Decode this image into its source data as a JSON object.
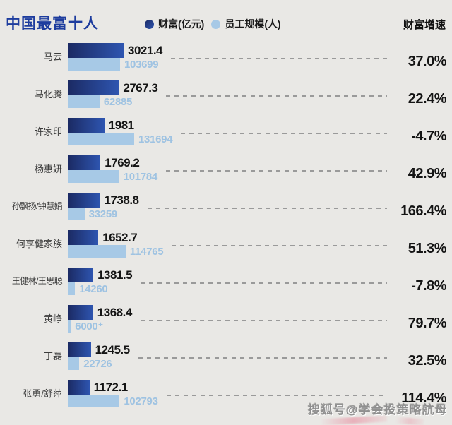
{
  "header": {
    "title": "中国最富十人",
    "legend_wealth": "财富(亿元)",
    "legend_employees": "员工规模(人)",
    "growth_header": "财富增速"
  },
  "watermark": "搜狐号@学会投策略航母",
  "colors": {
    "background": "#e9e8e5",
    "title_blue": "#1d3c9e",
    "bar_dark_gradient_start": "#1b2a63",
    "bar_dark_gradient_end": "#2e55b0",
    "bar_light_blue": "#a7c9e6",
    "employee_text_blue": "#9fc3e2",
    "value_text": "#141414",
    "dash_gray": "#9a9a9a"
  },
  "chart_data": {
    "type": "bar",
    "orientation": "horizontal",
    "title": "中国最富十人",
    "legend_position": "top",
    "grid": false,
    "categories": [
      "马云",
      "马化腾",
      "许家印",
      "杨惠妍",
      "孙飘扬/钟慧娟",
      "何享健家族",
      "王健林/王思聪",
      "黄峥",
      "丁磊",
      "张勇/舒萍"
    ],
    "series": [
      {
        "name": "财富(亿元)",
        "values": [
          3021.4,
          2767.3,
          1981,
          1769.2,
          1738.8,
          1652.7,
          1381.5,
          1368.4,
          1245.5,
          1172.1
        ]
      },
      {
        "name": "员工规模(人)",
        "values": [
          103699,
          62885,
          131694,
          101784,
          33259,
          114765,
          14260,
          6000,
          22726,
          102793
        ]
      }
    ],
    "wealth_labels": [
      "3021.4",
      "2767.3",
      "1981",
      "1769.2",
      "1738.8",
      "1652.7",
      "1381.5",
      "1368.4",
      "1245.5",
      "1172.1"
    ],
    "employee_labels": [
      "103699",
      "62885",
      "131694",
      "101784",
      "33259",
      "114765",
      "14260",
      "6000⁺",
      "22726",
      "102793"
    ],
    "growth_labels": [
      "37.0%",
      "22.4%",
      "-4.7%",
      "42.9%",
      "166.4%",
      "51.3%",
      "-7.8%",
      "79.7%",
      "32.5%",
      "114.4%"
    ],
    "growth_column_title": "财富增速"
  }
}
